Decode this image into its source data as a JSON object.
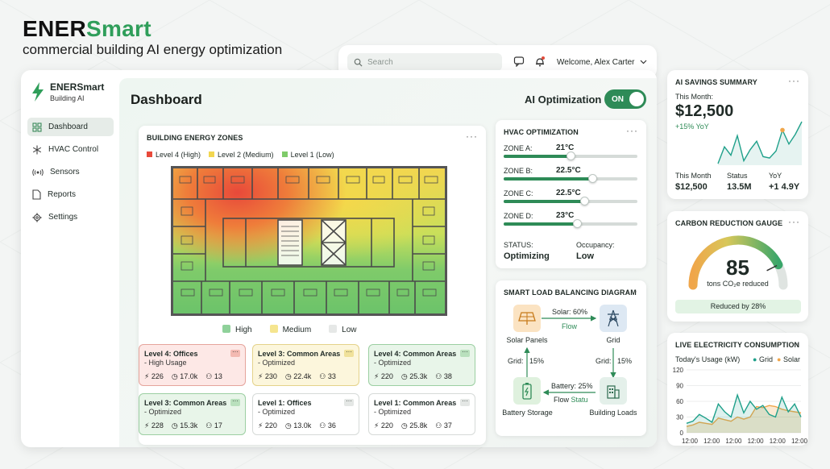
{
  "brand": {
    "title_a": "ENER",
    "title_b": "Smart",
    "subtitle": "commercial building AI energy optimization"
  },
  "topbar": {
    "search_placeholder": "Search",
    "welcome": "Welcome, Alex Carter"
  },
  "sidebar": {
    "logo_name": "ENERSmart",
    "logo_sub": "Building AI",
    "items": [
      {
        "label": "Dashboard",
        "icon": "grid-icon",
        "active": true
      },
      {
        "label": "HVAC Control",
        "icon": "snowflake-icon",
        "active": false
      },
      {
        "label": "Sensors",
        "icon": "sensor-icon",
        "active": false
      },
      {
        "label": "Reports",
        "icon": "document-icon",
        "active": false
      },
      {
        "label": "Settings",
        "icon": "gear-icon",
        "active": false
      }
    ]
  },
  "main": {
    "title": "Dashboard",
    "ai_label": "AI Optimization",
    "toggle_label": "ON"
  },
  "zones": {
    "title": "BUILDING ENERGY ZONES",
    "legend_top": [
      {
        "label": "Level 4 (High)",
        "color": "#e8493a"
      },
      {
        "label": "Level 2 (Medium)",
        "color": "#f2d650"
      },
      {
        "label": "Level 1 (Low)",
        "color": "#7fcb6a"
      }
    ],
    "legend_mid": [
      {
        "label": "High",
        "color": "#8fd19a"
      },
      {
        "label": "Medium",
        "color": "#f5e58f"
      },
      {
        "label": "Low",
        "color": "#e6e8e7"
      }
    ],
    "cards": [
      {
        "title": "Level 4: Offices",
        "status": "- High Usage",
        "a": "226",
        "b": "17.0k",
        "c": "13",
        "tone": "red"
      },
      {
        "title": "Level 3: Common Areas",
        "status": "- Optimized",
        "a": "230",
        "b": "22.4k",
        "c": "33",
        "tone": "yellow"
      },
      {
        "title": "Level 4: Common Areas",
        "status": "- Optimized",
        "a": "220",
        "b": "25.3k",
        "c": "38",
        "tone": "green"
      },
      {
        "title": "Level 3: Common Areas",
        "status": "- Optimized",
        "a": "228",
        "b": "15.3k",
        "c": "17",
        "tone": "green"
      },
      {
        "title": "Level 1: Offices",
        "status": "- Optimized",
        "a": "220",
        "b": "13.0k",
        "c": "36",
        "tone": "white"
      },
      {
        "title": "Level 1: Common Areas",
        "status": "- Optimized",
        "a": "220",
        "b": "25.8k",
        "c": "37",
        "tone": "white"
      }
    ]
  },
  "hvac": {
    "title": "HVAC OPTIMIZATION",
    "zones": [
      {
        "label": "ZONE A:",
        "value": "21°C",
        "level": 0.5
      },
      {
        "label": "ZONE B:",
        "value": "22.5°C",
        "level": 0.66
      },
      {
        "label": "ZONE C:",
        "value": "22.5°C",
        "level": 0.6
      },
      {
        "label": "ZONE D:",
        "value": "23°C",
        "level": 0.55
      }
    ],
    "status_label": "STATUS:",
    "status_value": "Optimizing",
    "occupancy_label": "Occupancy:",
    "occupancy_value": "Low"
  },
  "load": {
    "title": "SMART LOAD BALANCING DIAGRAM",
    "solar": "Solar Panels",
    "grid": "Grid",
    "battery": "Battery Storage",
    "building": "Building Loads",
    "solar_flow": "Solar: 60%",
    "flow": "Flow",
    "grid_left": "Grid:",
    "grid_left_pct": "15%",
    "grid_right": "Grid:",
    "grid_right_pct": "15%",
    "battery_flow": "Battery: 25%",
    "battery_flow_sub_a": "Flow",
    "battery_flow_sub_b": "Statu"
  },
  "savings": {
    "title": "AI SAVINGS SUMMARY",
    "month_label": "This Month:",
    "month_value": "$12,500",
    "yoy": "+15% YoY",
    "cols": [
      {
        "label": "This Month",
        "value": "$12,500"
      },
      {
        "label": "Status",
        "value": "13.5M"
      },
      {
        "label": "YoY",
        "value": "+1 4.9Y"
      }
    ],
    "sparkline": [
      10,
      22,
      16,
      30,
      12,
      20,
      26,
      15,
      14,
      19,
      34,
      24,
      31,
      40
    ]
  },
  "carbon": {
    "title": "CARBON REDUCTION GAUGE",
    "value": "85",
    "unit": "tons CO₂e reduced",
    "badge": "Reduced by 28%",
    "fraction": 0.85
  },
  "live": {
    "title": "LIVE ELECTRICITY CONSUMPTION",
    "subtitle": "Today's Usage (kW)",
    "legend_grid": "Grid",
    "legend_solar": "Solar",
    "grid_color": "#1fa08a",
    "solar_color": "#f0a64a",
    "y_ticks": [
      "120",
      "90",
      "60",
      "30",
      "0"
    ],
    "x_ticks": [
      "12:00",
      "12:00",
      "12:00",
      "12:00",
      "12:00",
      "12:00"
    ],
    "grid_series": [
      18,
      22,
      35,
      28,
      20,
      55,
      40,
      30,
      72,
      38,
      60,
      45,
      52,
      35,
      30,
      68,
      40,
      55,
      30
    ],
    "solar_series": [
      12,
      15,
      20,
      18,
      16,
      28,
      25,
      22,
      30,
      26,
      30,
      50,
      48,
      52,
      50,
      45,
      42,
      40,
      38
    ]
  }
}
